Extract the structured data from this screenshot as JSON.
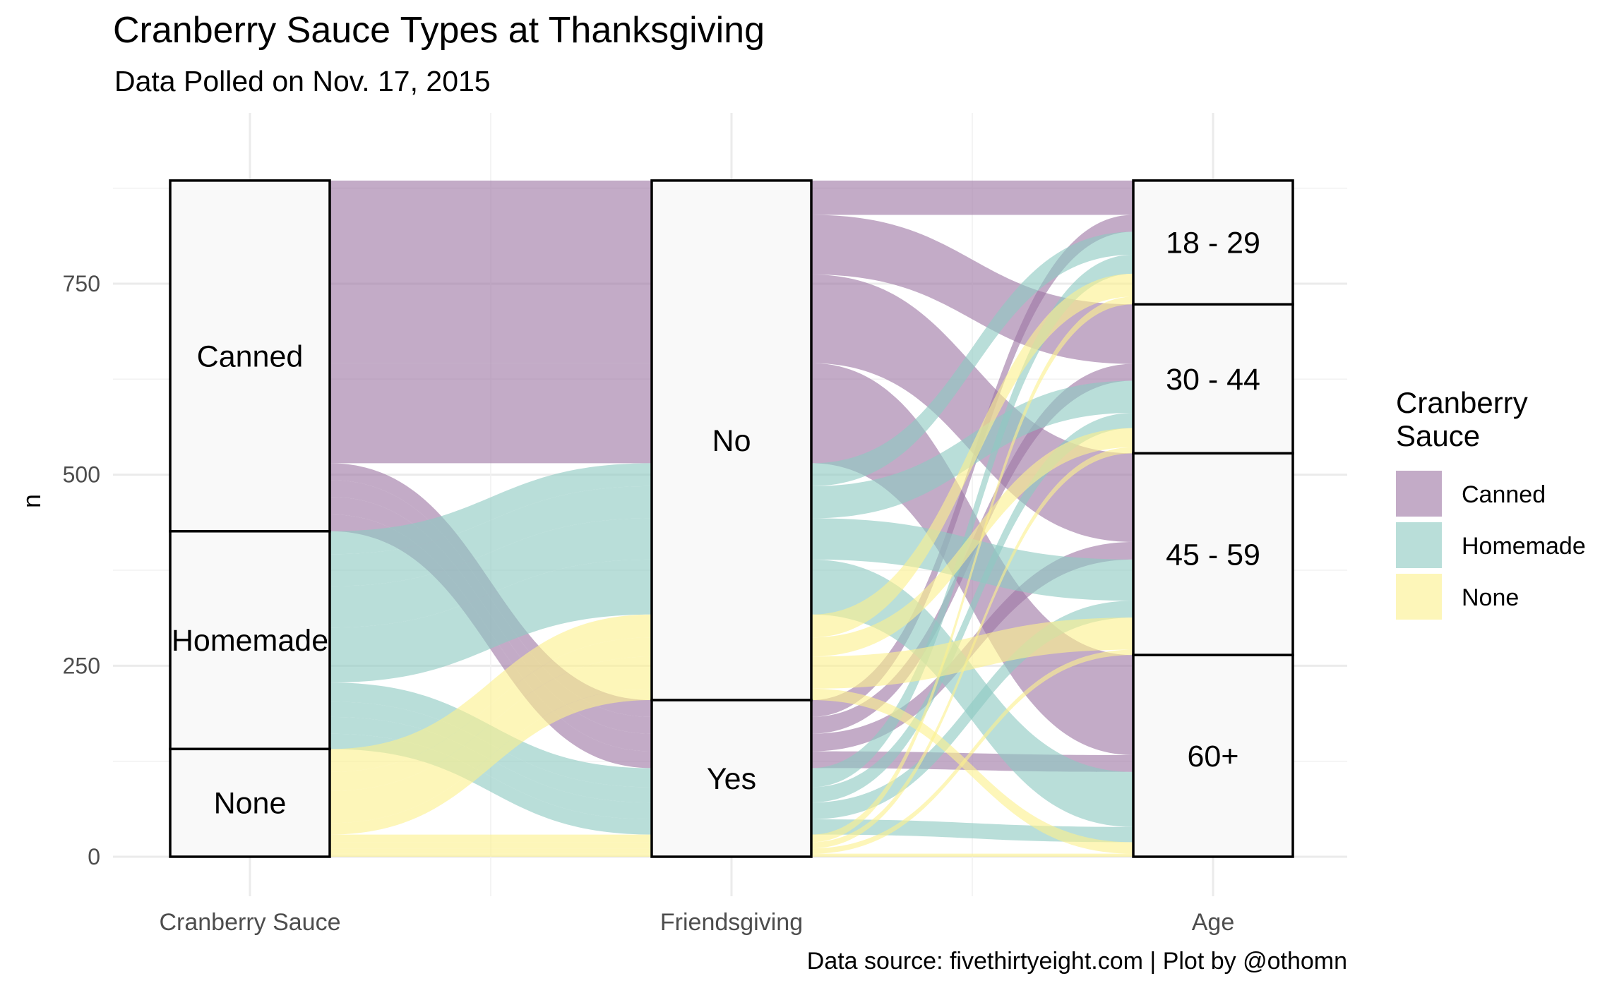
{
  "chart_data": {
    "type": "alluvial",
    "title": "Cranberry Sauce Types at Thanksgiving",
    "subtitle": "Data Polled on Nov. 17, 2015",
    "ylabel": "n",
    "xlabel": "",
    "caption": "Data source: fivethirtyeight.com | Plot by @othomn",
    "ylim": [
      0,
      920
    ],
    "y_ticks": [
      0,
      250,
      500,
      750
    ],
    "axes": [
      "Cranberry Sauce",
      "Friendsgiving",
      "Age"
    ],
    "strata": {
      "Cranberry Sauce": [
        "Canned",
        "Homemade",
        "None"
      ],
      "Friendsgiving": [
        "No",
        "Yes"
      ],
      "Age": [
        "18 - 29",
        "30 - 44",
        "45 - 59",
        "60+"
      ]
    },
    "fill_legend": {
      "title": "Cranberry Sauce",
      "title_lines": [
        "Cranberry",
        "Sauce"
      ],
      "entries": [
        "Canned",
        "Homemade",
        "None"
      ],
      "colors": {
        "Canned": "#9e78a5",
        "Homemade": "#8ec9c2",
        "None": "#fbf08e"
      }
    },
    "flows": [
      {
        "sauce": "Canned",
        "friendsgiving": "No",
        "age": "18 - 29",
        "n": 45
      },
      {
        "sauce": "Canned",
        "friendsgiving": "No",
        "age": "30 - 44",
        "n": 78
      },
      {
        "sauce": "Canned",
        "friendsgiving": "No",
        "age": "45 - 59",
        "n": 116
      },
      {
        "sauce": "Canned",
        "friendsgiving": "No",
        "age": "60+",
        "n": 131
      },
      {
        "sauce": "Canned",
        "friendsgiving": "Yes",
        "age": "18 - 29",
        "n": 22
      },
      {
        "sauce": "Canned",
        "friendsgiving": "Yes",
        "age": "30 - 44",
        "n": 22
      },
      {
        "sauce": "Canned",
        "friendsgiving": "Yes",
        "age": "45 - 59",
        "n": 23
      },
      {
        "sauce": "Canned",
        "friendsgiving": "Yes",
        "age": "60+",
        "n": 22
      },
      {
        "sauce": "Homemade",
        "friendsgiving": "No",
        "age": "18 - 29",
        "n": 30
      },
      {
        "sauce": "Homemade",
        "friendsgiving": "No",
        "age": "30 - 44",
        "n": 42
      },
      {
        "sauce": "Homemade",
        "friendsgiving": "No",
        "age": "45 - 59",
        "n": 54
      },
      {
        "sauce": "Homemade",
        "friendsgiving": "No",
        "age": "60+",
        "n": 72
      },
      {
        "sauce": "Homemade",
        "friendsgiving": "Yes",
        "age": "18 - 29",
        "n": 25
      },
      {
        "sauce": "Homemade",
        "friendsgiving": "Yes",
        "age": "30 - 44",
        "n": 20
      },
      {
        "sauce": "Homemade",
        "friendsgiving": "Yes",
        "age": "45 - 59",
        "n": 22
      },
      {
        "sauce": "Homemade",
        "friendsgiving": "Yes",
        "age": "60+",
        "n": 20
      },
      {
        "sauce": "None",
        "friendsgiving": "No",
        "age": "18 - 29",
        "n": 30
      },
      {
        "sauce": "None",
        "friendsgiving": "No",
        "age": "30 - 44",
        "n": 25
      },
      {
        "sauce": "None",
        "friendsgiving": "No",
        "age": "45 - 59",
        "n": 42
      },
      {
        "sauce": "None",
        "friendsgiving": "No",
        "age": "60+",
        "n": 15
      },
      {
        "sauce": "None",
        "friendsgiving": "Yes",
        "age": "18 - 29",
        "n": 10
      },
      {
        "sauce": "None",
        "friendsgiving": "Yes",
        "age": "30 - 44",
        "n": 8
      },
      {
        "sauce": "None",
        "friendsgiving": "Yes",
        "age": "45 - 59",
        "n": 7
      },
      {
        "sauce": "None",
        "friendsgiving": "Yes",
        "age": "60+",
        "n": 4
      }
    ]
  }
}
